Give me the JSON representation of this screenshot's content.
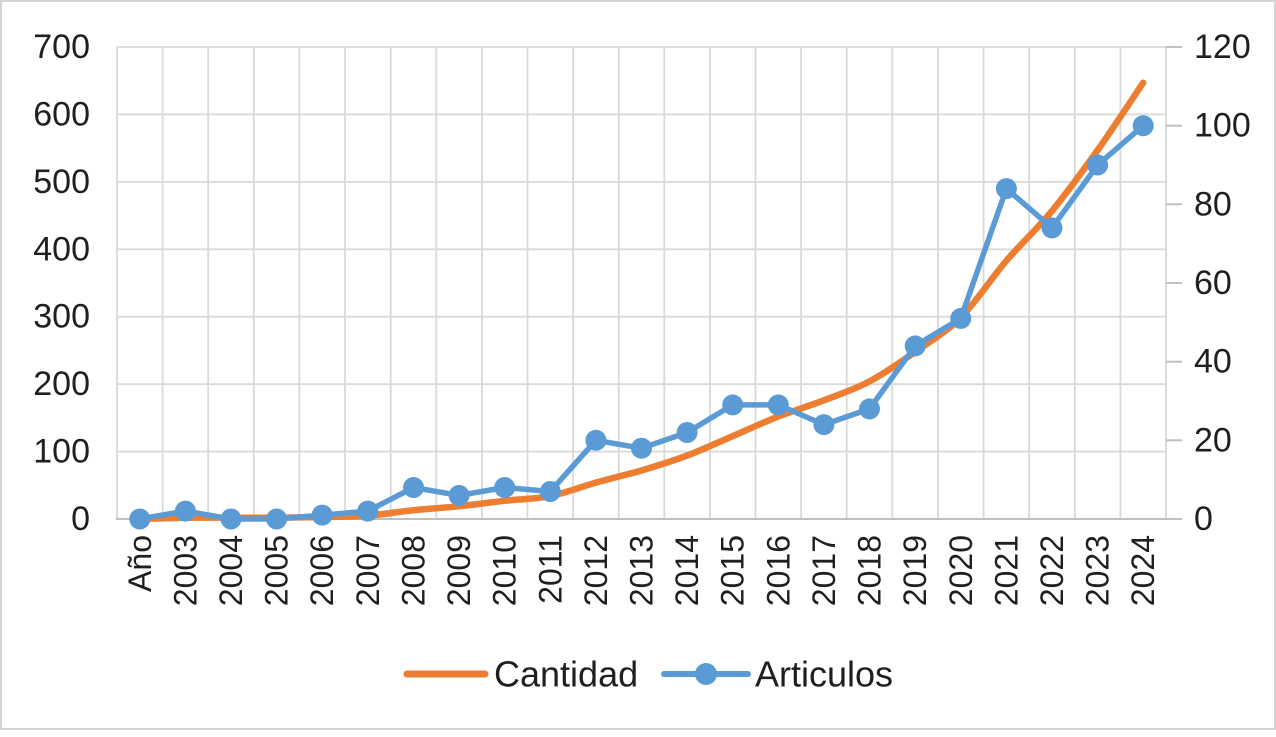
{
  "chart_data": {
    "type": "line",
    "categories": [
      "Año",
      "2003",
      "2004",
      "2005",
      "2006",
      "2007",
      "2008",
      "2009",
      "2010",
      "2011",
      "2012",
      "2013",
      "2014",
      "2015",
      "2016",
      "2017",
      "2018",
      "2019",
      "2020",
      "2021",
      "2022",
      "2023",
      "2024"
    ],
    "series": [
      {
        "name": "Cantidad",
        "axis": "left",
        "color": "#ED7D31",
        "marker": false,
        "smooth": true,
        "values": [
          0,
          2,
          2,
          2,
          3,
          5,
          13,
          19,
          27,
          34,
          54,
          72,
          94,
          123,
          152,
          176,
          204,
          248,
          299,
          383,
          457,
          547,
          647
        ]
      },
      {
        "name": "Articulos",
        "axis": "right",
        "color": "#5B9BD5",
        "marker": true,
        "smooth": false,
        "values": [
          0,
          2,
          0,
          0,
          1,
          2,
          8,
          6,
          8,
          7,
          20,
          18,
          22,
          29,
          29,
          24,
          28,
          44,
          51,
          84,
          74,
          90,
          100
        ]
      }
    ],
    "left_axis": {
      "min": 0,
      "max": 700,
      "step": 100,
      "tick_labels": [
        "0",
        "100",
        "200",
        "300",
        "400",
        "500",
        "600",
        "700"
      ]
    },
    "right_axis": {
      "min": 0,
      "max": 120,
      "step": 20,
      "tick_labels": [
        "0",
        "20",
        "40",
        "60",
        "80",
        "100",
        "120"
      ]
    },
    "legend": {
      "position": "bottom",
      "entries": [
        "Cantidad",
        "Articulos"
      ]
    },
    "grid": {
      "horizontal": true,
      "vertical": true
    }
  },
  "colors": {
    "cantidad": "#ED7D31",
    "articulos": "#5B9BD5",
    "gridline": "#D9D9D9",
    "axis_line": "#BFBFBF",
    "text": "#1F1F1F",
    "frame_border": "#D3D3D3",
    "background": "#FFFFFF"
  }
}
